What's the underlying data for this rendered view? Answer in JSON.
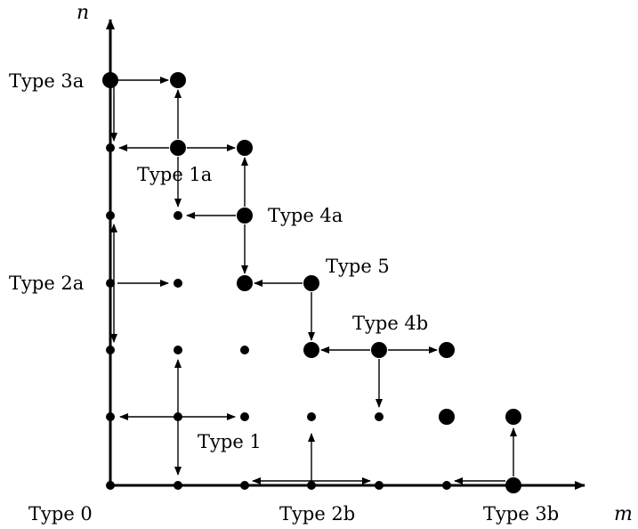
{
  "axes": {
    "x_label": "m",
    "y_label": "n"
  },
  "types": {
    "t0": "Type 0",
    "t1": "Type 1",
    "t1a": "Type 1a",
    "t2a": "Type 2a",
    "t2b": "Type 2b",
    "t3a": "Type 3a",
    "t3b": "Type 3b",
    "t4a": "Type 4a",
    "t4b": "Type 4b",
    "t5": "Type 5"
  }
}
